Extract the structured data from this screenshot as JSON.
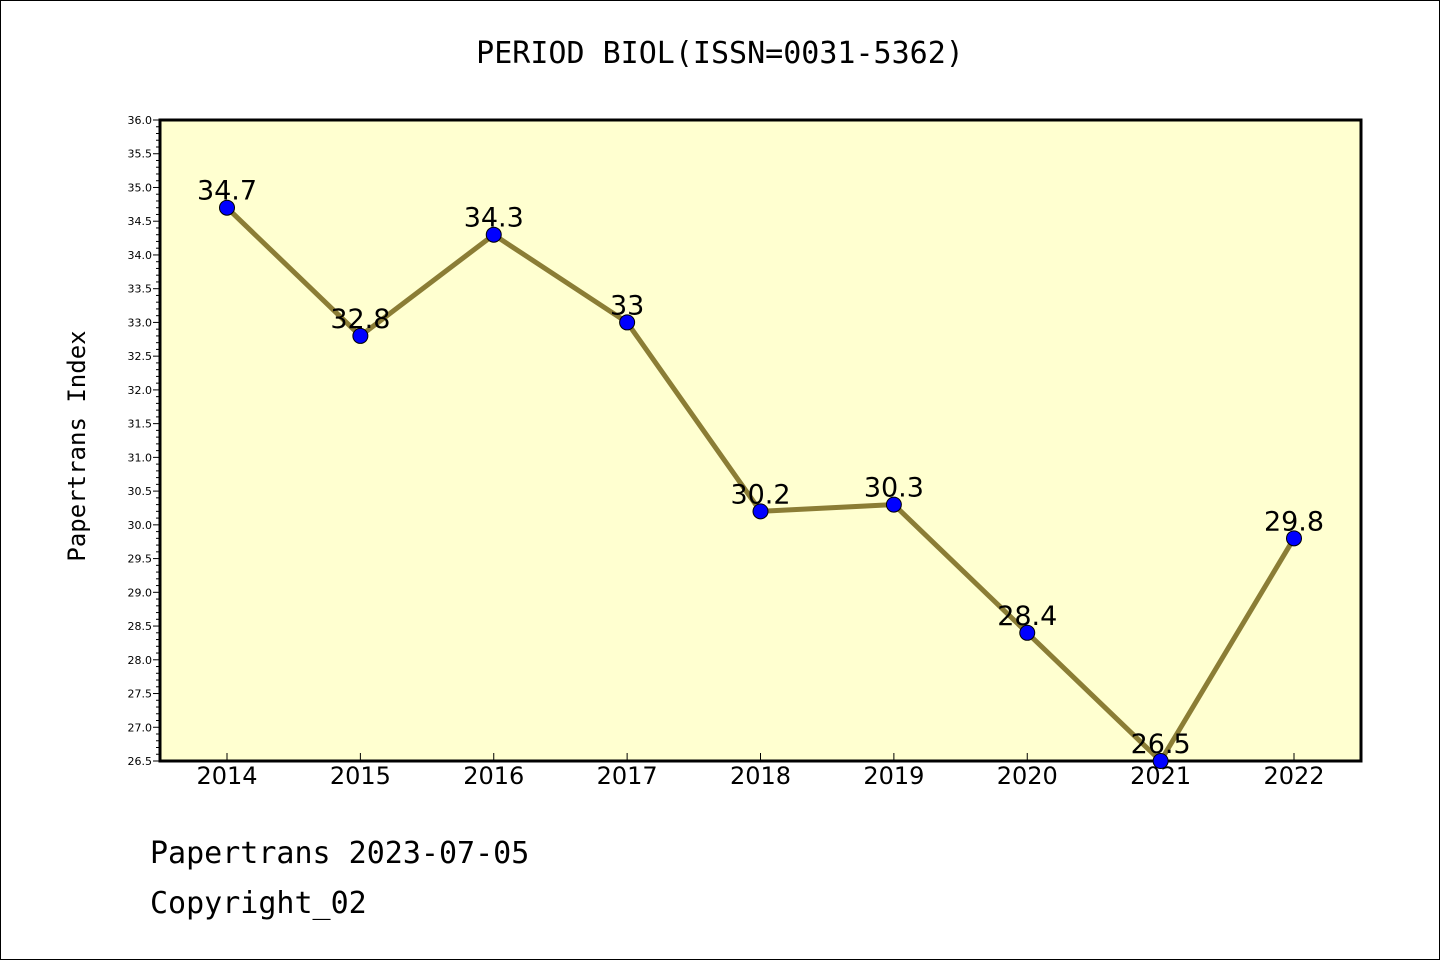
{
  "chart_data": {
    "type": "line",
    "title": "PERIOD BIOL(ISSN=0031-5362)",
    "ylabel": "Papertrans Index",
    "xlabel": "",
    "categories": [
      "2014",
      "2015",
      "2016",
      "2017",
      "2018",
      "2019",
      "2020",
      "2021",
      "2022"
    ],
    "values": [
      34.7,
      32.8,
      34.3,
      33.0,
      30.2,
      30.3,
      28.4,
      26.5,
      29.8
    ],
    "value_labels": [
      "34.7",
      "32.8",
      "34.3",
      "33",
      "30.2",
      "30.3",
      "28.4",
      "26.5",
      "29.8"
    ],
    "ylim": [
      26.5,
      36.0
    ],
    "ytick_step": 0.5,
    "grid": false,
    "line_color": "#8b7d35",
    "marker_color": "#0000ff",
    "plot_background": "#ffffd0"
  },
  "footer": {
    "line1": "Papertrans 2023-07-05",
    "line2": "Copyright_02"
  }
}
